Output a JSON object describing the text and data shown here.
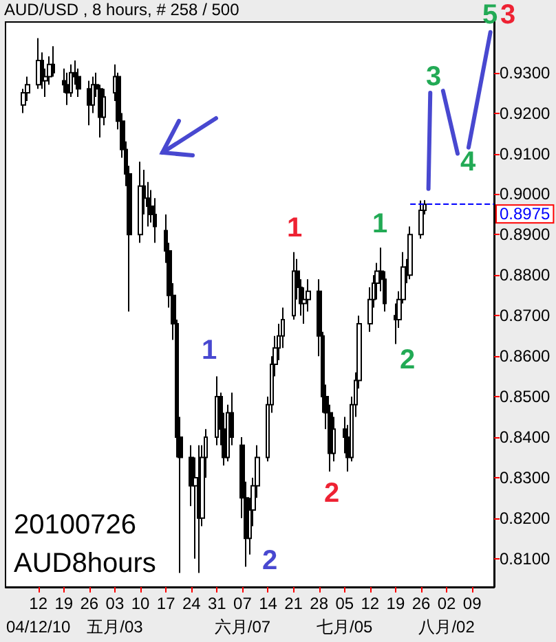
{
  "chart_data": {
    "type": "candlestick",
    "title": "AUD/USD , 8 hours, # 258 / 500",
    "xlim": [
      "2010-04-03",
      "2010-08-15"
    ],
    "ylim": [
      0.803,
      0.9425
    ],
    "xticks": [
      {
        "value": "2010-04-12",
        "label": "12"
      },
      {
        "value": "2010-04-19",
        "label": "19"
      },
      {
        "value": "2010-04-26",
        "label": "26"
      },
      {
        "value": "2010-05-03",
        "label": "03"
      },
      {
        "value": "2010-05-10",
        "label": "10"
      },
      {
        "value": "2010-05-17",
        "label": "17"
      },
      {
        "value": "2010-05-24",
        "label": "24"
      },
      {
        "value": "2010-05-31",
        "label": "31"
      },
      {
        "value": "2010-06-07",
        "label": "07"
      },
      {
        "value": "2010-06-14",
        "label": "14"
      },
      {
        "value": "2010-06-21",
        "label": "21"
      },
      {
        "value": "2010-06-28",
        "label": "28"
      },
      {
        "value": "2010-07-05",
        "label": "05"
      },
      {
        "value": "2010-07-12",
        "label": "12"
      },
      {
        "value": "2010-07-19",
        "label": "19"
      },
      {
        "value": "2010-07-26",
        "label": "26"
      },
      {
        "value": "2010-08-02",
        "label": "02"
      },
      {
        "value": "2010-08-09",
        "label": "09"
      }
    ],
    "x2lim": [
      "2010-04-03",
      "2010-08-15"
    ],
    "x2ticks": [
      {
        "value": "2010-04-12",
        "label": "04/12/10"
      },
      {
        "value": "2010-05-03",
        "label": "五月/03"
      },
      {
        "value": "2010-06-07",
        "label": "六月/07"
      },
      {
        "value": "2010-07-05",
        "label": "七月/05"
      },
      {
        "value": "2010-08-02",
        "label": "八月/02"
      }
    ],
    "yticks": [
      {
        "value": 0.81,
        "label": "0.8100"
      },
      {
        "value": 0.82,
        "label": "0.8200"
      },
      {
        "value": 0.83,
        "label": "0.8300"
      },
      {
        "value": 0.84,
        "label": "0.8400"
      },
      {
        "value": 0.85,
        "label": "0.8500"
      },
      {
        "value": 0.86,
        "label": "0.8600"
      },
      {
        "value": 0.87,
        "label": "0.8700"
      },
      {
        "value": 0.88,
        "label": "0.8800"
      },
      {
        "value": 0.89,
        "label": "0.8900"
      },
      {
        "value": 0.9,
        "label": "0.9000"
      },
      {
        "value": 0.91,
        "label": "0.9100"
      },
      {
        "value": 0.92,
        "label": "0.9200"
      },
      {
        "value": 0.93,
        "label": "0.9300"
      }
    ],
    "series": [
      {
        "color": "#000000",
        "x": [
          "2010-04-08",
          "2010-04-09",
          "2010-04-12",
          "2010-04-13",
          "2010-04-14",
          "2010-04-15",
          "2010-04-16",
          "2010-04-19",
          "2010-04-20",
          "2010-04-21",
          "2010-04-22",
          "2010-04-23",
          "2010-04-26",
          "2010-04-27",
          "2010-04-28",
          "2010-04-29",
          "2010-04-30",
          "2010-05-03",
          "2010-05-04",
          "2010-05-05",
          "2010-05-06",
          "2010-05-07",
          "2010-05-10",
          "2010-05-11",
          "2010-05-12",
          "2010-05-13",
          "2010-05-14",
          "2010-05-17",
          "2010-05-18",
          "2010-05-19",
          "2010-05-20",
          "2010-05-21",
          "2010-05-24",
          "2010-05-25",
          "2010-05-26",
          "2010-05-27",
          "2010-05-28",
          "2010-05-31",
          "2010-06-01",
          "2010-06-02",
          "2010-06-03",
          "2010-06-04",
          "2010-06-07",
          "2010-06-08",
          "2010-06-09",
          "2010-06-10",
          "2010-06-11",
          "2010-06-14",
          "2010-06-15",
          "2010-06-16",
          "2010-06-17",
          "2010-06-18",
          "2010-06-21",
          "2010-06-22",
          "2010-06-23",
          "2010-06-24",
          "2010-06-25",
          "2010-06-28",
          "2010-06-29",
          "2010-06-30",
          "2010-07-01",
          "2010-07-02",
          "2010-07-05",
          "2010-07-06",
          "2010-07-07",
          "2010-07-08",
          "2010-07-09",
          "2010-07-12",
          "2010-07-13",
          "2010-07-14",
          "2010-07-15",
          "2010-07-16",
          "2010-07-19",
          "2010-07-20",
          "2010-07-21",
          "2010-07-22",
          "2010-07-23",
          "2010-07-26",
          "2010-07-27"
        ],
        "ohlc": [
          [
            0.922,
            0.926,
            0.92,
            0.925
          ],
          [
            0.925,
            0.929,
            0.923,
            0.927
          ],
          [
            0.927,
            0.9385,
            0.926,
            0.933
          ],
          [
            0.933,
            0.935,
            0.926,
            0.928
          ],
          [
            0.928,
            0.931,
            0.924,
            0.929
          ],
          [
            0.929,
            0.934,
            0.927,
            0.932
          ],
          [
            0.932,
            0.9365,
            0.929,
            0.93
          ],
          [
            0.928,
            0.931,
            0.925,
            0.927
          ],
          [
            0.927,
            0.93,
            0.922,
            0.925
          ],
          [
            0.925,
            0.932,
            0.924,
            0.93
          ],
          [
            0.93,
            0.933,
            0.927,
            0.929
          ],
          [
            0.929,
            0.931,
            0.924,
            0.926
          ],
          [
            0.926,
            0.928,
            0.917,
            0.922
          ],
          [
            0.922,
            0.929,
            0.92,
            0.927
          ],
          [
            0.927,
            0.93,
            0.924,
            0.926
          ],
          [
            0.926,
            0.927,
            0.914,
            0.919
          ],
          [
            0.919,
            0.926,
            0.917,
            0.924
          ],
          [
            0.925,
            0.932,
            0.923,
            0.929
          ],
          [
            0.929,
            0.93,
            0.916,
            0.918
          ],
          [
            0.918,
            0.92,
            0.909,
            0.911
          ],
          [
            0.911,
            0.913,
            0.902,
            0.905
          ],
          [
            0.905,
            0.907,
            0.871,
            0.89
          ],
          [
            0.89,
            0.908,
            0.888,
            0.902
          ],
          [
            0.902,
            0.906,
            0.895,
            0.899
          ],
          [
            0.899,
            0.903,
            0.892,
            0.897
          ],
          [
            0.897,
            0.901,
            0.893,
            0.895
          ],
          [
            0.895,
            0.899,
            0.888,
            0.892
          ],
          [
            0.891,
            0.895,
            0.883,
            0.886
          ],
          [
            0.886,
            0.888,
            0.872,
            0.875
          ],
          [
            0.875,
            0.878,
            0.864,
            0.868
          ],
          [
            0.868,
            0.869,
            0.835,
            0.84
          ],
          [
            0.84,
            0.845,
            0.8065,
            0.835
          ],
          [
            0.835,
            0.838,
            0.823,
            0.828
          ],
          [
            0.828,
            0.835,
            0.81,
            0.83
          ],
          [
            0.83,
            0.838,
            0.8065,
            0.82
          ],
          [
            0.82,
            0.838,
            0.818,
            0.835
          ],
          [
            0.835,
            0.842,
            0.83,
            0.84
          ],
          [
            0.84,
            0.855,
            0.838,
            0.85
          ],
          [
            0.85,
            0.851,
            0.838,
            0.842
          ],
          [
            0.842,
            0.846,
            0.833,
            0.835
          ],
          [
            0.835,
            0.848,
            0.834,
            0.846
          ],
          [
            0.846,
            0.851,
            0.838,
            0.84
          ],
          [
            0.838,
            0.84,
            0.82,
            0.825
          ],
          [
            0.825,
            0.829,
            0.808,
            0.815
          ],
          [
            0.815,
            0.825,
            0.811,
            0.822
          ],
          [
            0.822,
            0.83,
            0.818,
            0.828
          ],
          [
            0.828,
            0.838,
            0.825,
            0.835
          ],
          [
            0.835,
            0.85,
            0.834,
            0.848
          ],
          [
            0.848,
            0.86,
            0.846,
            0.858
          ],
          [
            0.858,
            0.865,
            0.855,
            0.862
          ],
          [
            0.862,
            0.868,
            0.859,
            0.865
          ],
          [
            0.865,
            0.872,
            0.862,
            0.869
          ],
          [
            0.87,
            0.8857,
            0.869,
            0.881
          ],
          [
            0.881,
            0.884,
            0.874,
            0.877
          ],
          [
            0.877,
            0.879,
            0.87,
            0.873
          ],
          [
            0.873,
            0.877,
            0.868,
            0.874
          ],
          [
            0.874,
            0.879,
            0.871,
            0.876
          ],
          [
            0.876,
            0.879,
            0.86,
            0.865
          ],
          [
            0.865,
            0.866,
            0.846,
            0.85
          ],
          [
            0.85,
            0.853,
            0.842,
            0.846
          ],
          [
            0.846,
            0.848,
            0.8315,
            0.836
          ],
          [
            0.836,
            0.845,
            0.834,
            0.842
          ],
          [
            0.842,
            0.845,
            0.836,
            0.84
          ],
          [
            0.84,
            0.843,
            0.8315,
            0.835
          ],
          [
            0.835,
            0.85,
            0.834,
            0.848
          ],
          [
            0.848,
            0.856,
            0.845,
            0.854
          ],
          [
            0.854,
            0.87,
            0.852,
            0.868
          ],
          [
            0.868,
            0.877,
            0.866,
            0.874
          ],
          [
            0.874,
            0.88,
            0.872,
            0.878
          ],
          [
            0.878,
            0.883,
            0.874,
            0.881
          ],
          [
            0.881,
            0.8868,
            0.876,
            0.879
          ],
          [
            0.879,
            0.881,
            0.871,
            0.873
          ],
          [
            0.87,
            0.873,
            0.863,
            0.869
          ],
          [
            0.869,
            0.876,
            0.867,
            0.874
          ],
          [
            0.874,
            0.8857,
            0.873,
            0.882
          ],
          [
            0.882,
            0.884,
            0.878,
            0.88
          ],
          [
            0.88,
            0.892,
            0.879,
            0.89
          ],
          [
            0.89,
            0.8984,
            0.889,
            0.896
          ],
          [
            0.896,
            0.8985,
            0.895,
            0.8975
          ]
        ]
      },
      {
        "type": "line",
        "color": "#4848d0",
        "x": [
          "2010-07-28",
          "2010-07-28T12:00",
          "2010-07-30",
          "2010-08-01",
          "2010-08-05",
          "2010-08-06",
          "2010-08-08",
          "2010-08-14"
        ],
        "values": [
          0.9013,
          0.925,
          null,
          0.9255,
          0.91,
          null,
          0.9115,
          0.94
        ]
      }
    ],
    "ref_lines": [
      {
        "axis": "y",
        "value": 0.8975,
        "label": "0.8975",
        "color": "#0000ff",
        "line_style": "dashed"
      }
    ],
    "annotations": [
      "1",
      "2",
      "1",
      "2",
      "1",
      "2",
      "3",
      "4",
      "5",
      "3",
      "20100726",
      "AUD8hours"
    ]
  }
}
